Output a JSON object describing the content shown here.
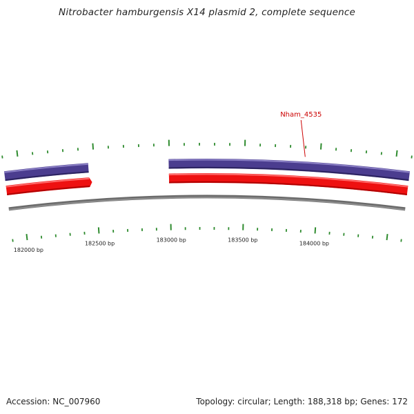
{
  "title": "Nitrobacter hamburgensis X14 plasmid 2, complete sequence",
  "footer": {
    "accession": "Accession: NC_007960",
    "summary": "Topology: circular; Length: 188,318 bp; Genes: 172"
  },
  "map": {
    "view_start_bp": 181900,
    "view_end_bp": 184600,
    "tick_labels": [
      {
        "bp": 182000,
        "text": "182000 bp"
      },
      {
        "bp": 182500,
        "text": "182500 bp"
      },
      {
        "bp": 183000,
        "text": "183000 bp"
      },
      {
        "bp": 183500,
        "text": "183500 bp"
      },
      {
        "bp": 184000,
        "text": "184000 bp"
      }
    ],
    "features": [
      {
        "strand": "forward",
        "start_bp": 181900,
        "end_bp": 182460
      },
      {
        "strand": "forward",
        "start_bp": 182995,
        "end_bp": 184600
      },
      {
        "strand": "reverse",
        "start_bp": 181900,
        "end_bp": 182460
      },
      {
        "strand": "reverse",
        "start_bp": 182995,
        "end_bp": 184600
      }
    ],
    "gene_label": {
      "text": "Nham_4535",
      "bp": 183900
    },
    "colors": {
      "forward_gene": "#4b3d8f",
      "reverse_gene": "#ee1111",
      "backbone": "#8c8c8c",
      "ticks": "#2e8b2e",
      "gene_label": "#cc0000"
    }
  }
}
